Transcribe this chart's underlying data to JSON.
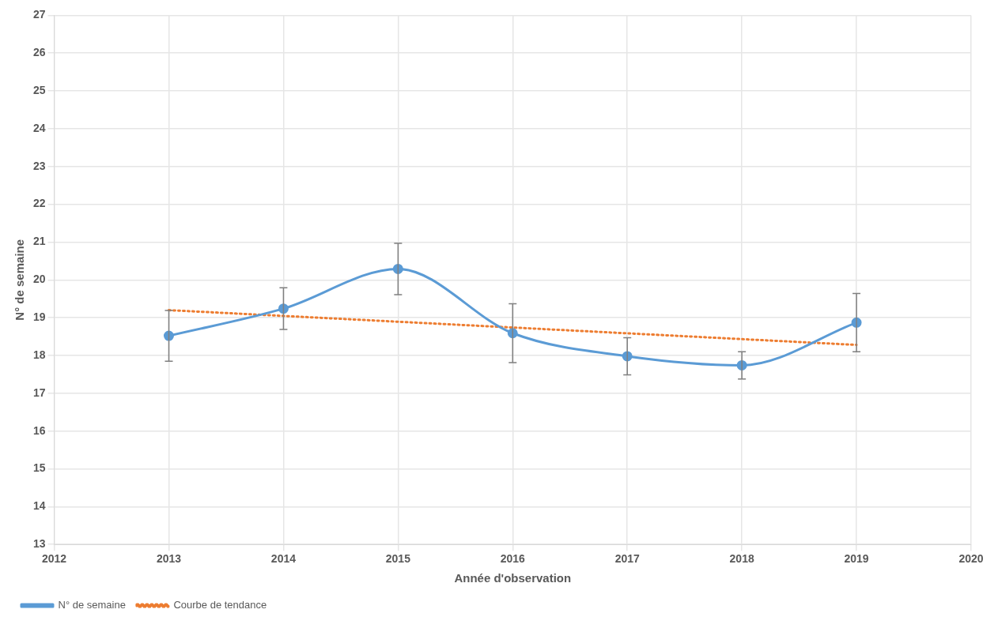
{
  "chart_data": {
    "type": "line",
    "xlabel": "Année d'observation",
    "ylabel": "N° de semaine",
    "x": [
      2013,
      2014,
      2015,
      2016,
      2017,
      2018,
      2019
    ],
    "series": [
      {
        "name": "N° de semaine",
        "color": "#5b9bd5",
        "values": [
          18.52,
          19.24,
          20.29,
          18.59,
          17.98,
          17.74,
          18.87
        ],
        "errors": [
          0.67,
          0.55,
          0.68,
          0.78,
          0.49,
          0.36,
          0.77
        ],
        "marker": "circle",
        "line_style": "solid"
      },
      {
        "name": "Courbe de tendance",
        "type": "line",
        "color": "#ed7d31",
        "x": [
          2013,
          2019
        ],
        "values": [
          19.2,
          18.28
        ],
        "marker": "none",
        "line_style": "dotted"
      }
    ],
    "xlim": [
      2012,
      2020
    ],
    "xticks": [
      2012,
      2013,
      2014,
      2015,
      2016,
      2017,
      2018,
      2019,
      2020
    ],
    "ylim": [
      13,
      27
    ],
    "yticks": [
      13,
      14,
      15,
      16,
      17,
      18,
      19,
      20,
      21,
      22,
      23,
      24,
      25,
      26,
      27
    ],
    "grid": true,
    "legend": "bottom left"
  }
}
